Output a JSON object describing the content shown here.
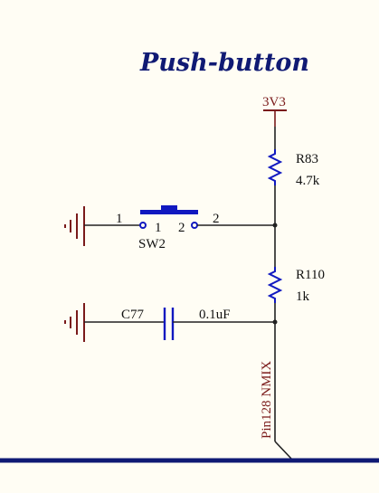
{
  "title": "Push-button",
  "colors": {
    "title": "#101a74",
    "wire": "#222222",
    "power": "#7a1a1a",
    "component": "#1018c0",
    "bus": "#101a74",
    "background": "#fffdf4"
  },
  "power": {
    "label": "3V3"
  },
  "r83": {
    "ref": "R83",
    "value": "4.7k"
  },
  "r110": {
    "ref": "R110",
    "value": "1k"
  },
  "sw2": {
    "ref": "SW2",
    "pin1_outer": "1",
    "pin1_inner": "1",
    "pin2_inner": "2",
    "pin2_outer": "2"
  },
  "c77": {
    "ref": "C77",
    "value": "0.1uF"
  },
  "net": {
    "label": "Pin128 NMIX"
  },
  "icons": {
    "ground": "ground-icon",
    "power": "power-port-icon"
  }
}
